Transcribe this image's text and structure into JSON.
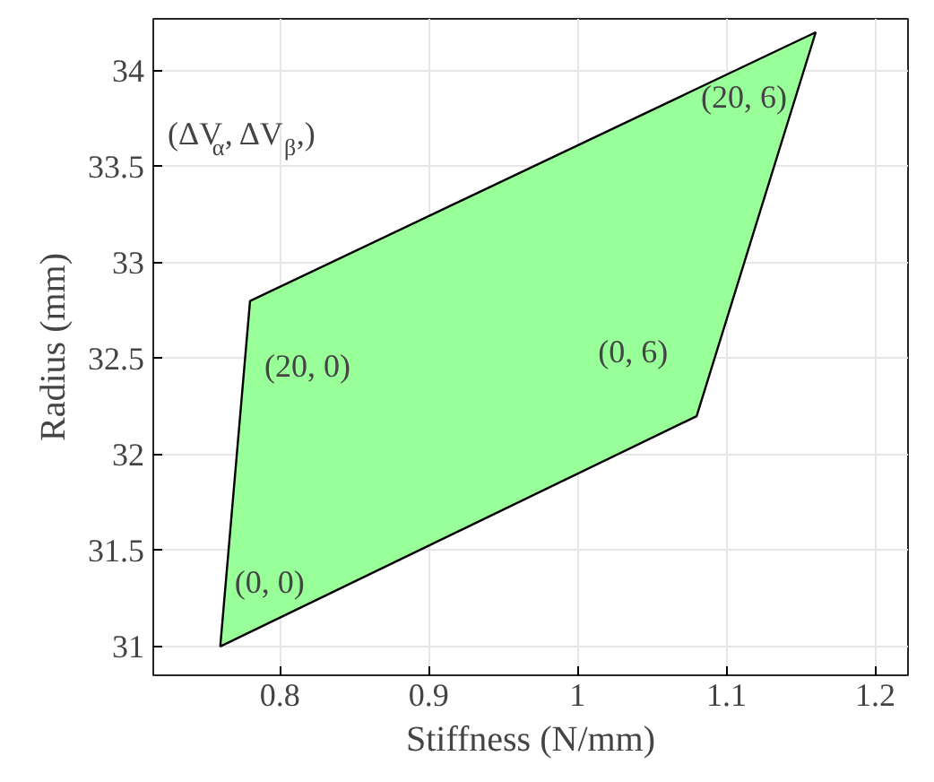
{
  "chart_data": {
    "type": "area",
    "xlabel": "Stiffness (N/mm)",
    "ylabel": "Radius (mm)",
    "series": [
      {
        "color": "#99ff99",
        "x": [
          0.76,
          0.78,
          1.16,
          1.08,
          0.76
        ],
        "values": [
          31.0,
          32.8,
          34.2,
          32.2,
          31.0
        ]
      }
    ],
    "annotations": [
      "(ΔV$_{α}$, ΔV$_{β}$,)",
      {
        "text": "(0, 0)",
        "x": 0.76,
        "y": 31.0
      },
      {
        "text": "(20, 0)",
        "x": 0.78,
        "y": 32.8
      },
      {
        "text": "(20, 6)",
        "x": 1.16,
        "y": 34.2
      },
      {
        "text": "(0, 6)",
        "x": 1.08,
        "y": 32.2
      }
    ],
    "xlim": [
      0.715,
      1.222
    ],
    "ylim": [
      30.85,
      34.27
    ],
    "xticks": [
      0.8,
      0.9,
      1,
      1.1,
      1.2
    ],
    "yticks": [
      31,
      31.5,
      32,
      32.5,
      33,
      33.5,
      34
    ],
    "grid": true
  }
}
